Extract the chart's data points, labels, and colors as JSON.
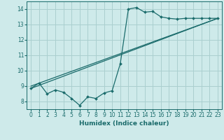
{
  "xlabel": "Humidex (Indice chaleur)",
  "xlim": [
    -0.5,
    23.5
  ],
  "ylim": [
    7.5,
    14.5
  ],
  "yticks": [
    8,
    9,
    10,
    11,
    12,
    13,
    14
  ],
  "xticks": [
    0,
    1,
    2,
    3,
    4,
    5,
    6,
    7,
    8,
    9,
    10,
    11,
    12,
    13,
    14,
    15,
    16,
    17,
    18,
    19,
    20,
    21,
    22,
    23
  ],
  "bg_color": "#ceeaea",
  "grid_color": "#aacfcf",
  "line_color": "#1a6b6b",
  "curve1_x": [
    0,
    1,
    2,
    3,
    4,
    5,
    6,
    7,
    8,
    9,
    10,
    11,
    12,
    13,
    14,
    15,
    16,
    17,
    18,
    19,
    20,
    21,
    22,
    23
  ],
  "curve1_y": [
    8.85,
    9.2,
    8.5,
    8.75,
    8.6,
    8.2,
    7.75,
    8.3,
    8.2,
    8.55,
    8.7,
    10.45,
    14.0,
    14.1,
    13.8,
    13.85,
    13.5,
    13.4,
    13.35,
    13.4,
    13.4,
    13.4,
    13.4,
    13.4
  ],
  "curve2_x": [
    0,
    23
  ],
  "curve2_y": [
    9.0,
    13.4
  ],
  "curve3_x": [
    0,
    23
  ],
  "curve3_y": [
    8.85,
    13.4
  ]
}
